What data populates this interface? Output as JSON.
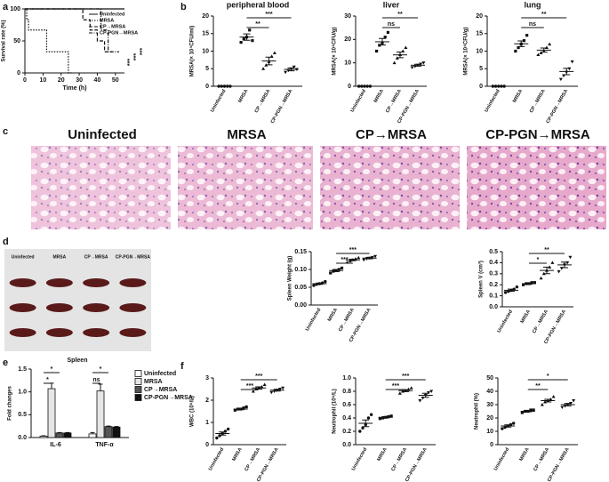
{
  "panel_labels": [
    "a",
    "b",
    "c",
    "d",
    "e",
    "f"
  ],
  "histology": {
    "titles": [
      "Uninfected",
      "MRSA",
      "CP→MRSA",
      "CP-PGN→MRSA"
    ]
  },
  "spleen_photo": {
    "column_labels": [
      "Uninfected",
      "MRSA",
      "CP→MRSA",
      "CP-PGN→MRSA"
    ],
    "caption": "Spleen"
  },
  "chart_data": [
    {
      "type": "line",
      "ylabel": "Survival rate (%)",
      "xlabel": "Time (h)",
      "xlim": [
        0,
        55
      ],
      "xticks": [
        0,
        10,
        20,
        30,
        40,
        50
      ],
      "ylim": [
        0,
        100
      ],
      "yticks": [
        0,
        50,
        100
      ],
      "series": [
        {
          "name": "Uninfected",
          "color": "#111111",
          "dash": "none",
          "x": [
            0,
            55
          ],
          "values": [
            100,
            100
          ]
        },
        {
          "name": "MRSA",
          "color": "#111111",
          "dash": "1.5,1.5",
          "x": [
            0,
            1,
            1,
            2,
            2,
            12,
            12,
            24,
            24,
            26
          ],
          "values": [
            100,
            100,
            83,
            83,
            67,
            67,
            33,
            33,
            0,
            0
          ]
        },
        {
          "name": "CP→MRSA",
          "color": "#111111",
          "dash": "4,2",
          "x": [
            0,
            32,
            32,
            36,
            36,
            40,
            40,
            44,
            44,
            48
          ],
          "values": [
            100,
            100,
            83,
            83,
            67,
            67,
            50,
            50,
            33,
            33
          ]
        },
        {
          "name": "CP-PGN→MRSA",
          "color": "#111111",
          "dash": "4,1.5,1,1.5",
          "x": [
            0,
            42,
            42,
            46,
            46,
            52
          ],
          "values": [
            100,
            100,
            67,
            67,
            33,
            33
          ]
        }
      ],
      "annotations": [
        "***",
        "***",
        "***"
      ]
    },
    {
      "type": "dotplot",
      "title": "peripheral blood",
      "ylabel": "MRSA(× 10⁴CFU/ml)",
      "categories": [
        "Uninfected",
        "MRSA",
        "CP→MRSA",
        "CP-PGN→MRSA"
      ],
      "ylim": [
        0,
        20
      ],
      "yticks": [
        0,
        5,
        10,
        15,
        20
      ],
      "values": [
        [
          0,
          0,
          0,
          0,
          0
        ],
        [
          12.5,
          13.5,
          14,
          16,
          13
        ],
        [
          5,
          6,
          7,
          8.5,
          9.5
        ],
        [
          4,
          4.5,
          5,
          5.5,
          4.8
        ]
      ],
      "means": [
        0,
        14,
        7.2,
        4.8
      ],
      "sems": [
        0,
        0.9,
        1.1,
        0.4
      ],
      "annotations": [
        {
          "text": "***",
          "between": [
            "MRSA",
            "CP-PGN→MRSA"
          ]
        },
        {
          "text": "**",
          "between": [
            "MRSA",
            "CP→MRSA"
          ]
        }
      ]
    },
    {
      "type": "dotplot",
      "title": "liver",
      "ylabel": "MRSA(× 10⁴CFU/g)",
      "categories": [
        "Uninfected",
        "MRSA",
        "CP→MRSA",
        "CP-PGN→MRSA"
      ],
      "ylim": [
        0,
        30
      ],
      "yticks": [
        0,
        10,
        20,
        30
      ],
      "values": [
        [
          0,
          0,
          0,
          0,
          0
        ],
        [
          15,
          17.5,
          18.5,
          21,
          23
        ],
        [
          10,
          12,
          13.5,
          15,
          16.5
        ],
        [
          8,
          8.5,
          9,
          9.5,
          10
        ]
      ],
      "means": [
        0,
        19,
        13.4,
        9
      ],
      "sems": [
        0,
        1.4,
        1.2,
        0.4
      ],
      "annotations": [
        {
          "text": "**",
          "between": [
            "MRSA",
            "CP-PGN→MRSA"
          ]
        },
        {
          "text": "ns",
          "between": [
            "MRSA",
            "CP→MRSA"
          ]
        }
      ]
    },
    {
      "type": "dotplot",
      "title": "lung",
      "ylabel": "MRSA(× 10⁴CFU/g)",
      "categories": [
        "Uninfected",
        "MRSA",
        "CP→MRSA",
        "CP-PGN→MRSA"
      ],
      "ylim": [
        0,
        20
      ],
      "yticks": [
        0,
        5,
        10,
        15,
        20
      ],
      "values": [
        [
          0,
          0,
          0,
          0,
          0
        ],
        [
          10,
          11,
          12,
          13,
          14.5
        ],
        [
          9,
          9.5,
          10,
          11,
          12
        ],
        [
          2,
          3,
          4,
          5,
          7
        ]
      ],
      "means": [
        0,
        12.1,
        10.3,
        4.2
      ],
      "sems": [
        0,
        0.8,
        0.6,
        0.9
      ],
      "annotations": [
        {
          "text": "**",
          "between": [
            "MRSA",
            "CP-PGN→MRSA"
          ]
        },
        {
          "text": "ns",
          "between": [
            "MRSA",
            "CP→MRSA"
          ]
        }
      ]
    },
    {
      "type": "dotplot",
      "ylabel": "Spleen Weight (g)",
      "categories": [
        "Uninfected",
        "MRSA",
        "CP→MRSA",
        "CP-PGN→MRSA"
      ],
      "ylim": [
        0,
        0.15
      ],
      "yticks": [
        {
          "value": 0,
          "label": "0.00"
        },
        0.05,
        {
          "value": 0.1,
          "label": "0.10"
        },
        0.15
      ],
      "values": [
        [
          0.055,
          0.058,
          0.06,
          0.062,
          0.066
        ],
        [
          0.09,
          0.095,
          0.097,
          0.1,
          0.104
        ],
        [
          0.12,
          0.124,
          0.127,
          0.13,
          0.133
        ],
        [
          0.127,
          0.13,
          0.132,
          0.134,
          0.137
        ]
      ],
      "means": [
        0.06,
        0.097,
        0.127,
        0.132
      ],
      "sems": [
        0.002,
        0.003,
        0.002,
        0.002
      ],
      "annotations": [
        {
          "text": "***",
          "between": [
            "MRSA",
            "CP-PGN→MRSA"
          ]
        },
        {
          "text": "***",
          "between": [
            "MRSA",
            "CP→MRSA"
          ]
        }
      ]
    },
    {
      "type": "dotplot",
      "ylabel": "Spleen V (cm³)",
      "categories": [
        "Uninfected",
        "MRSA",
        "CP→MRSA",
        "CP-PGN→MRSA"
      ],
      "ylim": [
        0,
        0.5
      ],
      "yticks": [
        {
          "value": 0,
          "label": "0.0"
        },
        0.1,
        0.2,
        0.3,
        0.4,
        0.5
      ],
      "values": [
        [
          0.13,
          0.14,
          0.15,
          0.16,
          0.18
        ],
        [
          0.2,
          0.21,
          0.21,
          0.22,
          0.22
        ],
        [
          0.26,
          0.3,
          0.33,
          0.36,
          0.4
        ],
        [
          0.32,
          0.35,
          0.38,
          0.4,
          0.45
        ]
      ],
      "means": [
        0.15,
        0.21,
        0.33,
        0.38
      ],
      "sems": [
        0.01,
        0.005,
        0.03,
        0.025
      ],
      "annotations": [
        {
          "text": "**",
          "between": [
            "MRSA",
            "CP-PGN→MRSA"
          ]
        },
        {
          "text": "*",
          "between": [
            "MRSA",
            "CP→MRSA"
          ]
        }
      ]
    },
    {
      "type": "bar",
      "ylabel": "Fold changes",
      "categories": [
        "IL-6",
        "TNF-α"
      ],
      "ylim": [
        0,
        1.5
      ],
      "yticks": [
        {
          "value": 0,
          "label": "0.0"
        },
        0.5,
        {
          "value": 1,
          "label": "1.0"
        },
        1.5
      ],
      "series": [
        {
          "name": "Uninfected",
          "color": "#ffffff",
          "values": [
            0.03,
            0.08
          ],
          "errors": [
            0.01,
            0.03
          ]
        },
        {
          "name": "MRSA",
          "color": "#e6e6e6",
          "values": [
            1.07,
            1.02
          ],
          "errors": [
            0.12,
            0.15
          ]
        },
        {
          "name": "CP→MRSA",
          "color": "#555555",
          "values": [
            0.1,
            0.24
          ],
          "errors": [
            0.01,
            0.01
          ]
        },
        {
          "name": "CP-PGN→MRSA",
          "color": "#111111",
          "values": [
            0.1,
            0.23
          ],
          "errors": [
            0.01,
            0.01
          ]
        }
      ],
      "annotations": [
        {
          "text": "*",
          "category": "IL-6",
          "between": [
            "Uninfected",
            "CP→MRSA"
          ]
        },
        {
          "text": "*",
          "category": "IL-6",
          "between": [
            "Uninfected",
            "MRSA"
          ]
        },
        {
          "text": "*",
          "category": "TNF-α",
          "between": [
            "Uninfected",
            "CP→MRSA"
          ]
        },
        {
          "text": "ns",
          "category": "TNF-α",
          "between": [
            "Uninfected",
            "MRSA"
          ]
        }
      ]
    },
    {
      "type": "dotplot",
      "ylabel": "WBC (10⁹/L)",
      "categories": [
        "Uninfected",
        "MRSA",
        "CP→MRSA",
        "CP-PGN→MRSA"
      ],
      "ylim": [
        0,
        3
      ],
      "yticks": [
        0,
        1,
        2,
        3
      ],
      "values": [
        [
          0.3,
          0.4,
          0.5,
          0.6,
          0.7
        ],
        [
          1.55,
          1.6,
          1.6,
          1.65,
          1.7
        ],
        [
          2.4,
          2.5,
          2.55,
          2.6,
          2.7
        ],
        [
          2.35,
          2.4,
          2.45,
          2.5,
          2.55
        ]
      ],
      "means": [
        0.5,
        1.6,
        2.55,
        2.45
      ],
      "sems": [
        0.07,
        0.03,
        0.05,
        0.04
      ],
      "annotations": [
        {
          "text": "***",
          "between": [
            "MRSA",
            "CP-PGN→MRSA"
          ]
        },
        {
          "text": "***",
          "between": [
            "MRSA",
            "CP→MRSA"
          ]
        }
      ]
    },
    {
      "type": "dotplot",
      "ylabel": "Neutrophil (10⁹/L)",
      "categories": [
        "Uninfected",
        "MRSA",
        "CP→MRSA",
        "CP-PGN→MRSA"
      ],
      "ylim": [
        0,
        1
      ],
      "yticks": [
        {
          "value": 0,
          "label": "0.0"
        },
        0.2,
        0.4,
        0.6,
        0.8,
        {
          "value": 1,
          "label": "1.0"
        }
      ],
      "values": [
        [
          0.2,
          0.25,
          0.3,
          0.4,
          0.45
        ],
        [
          0.39,
          0.4,
          0.41,
          0.42,
          0.43
        ],
        [
          0.77,
          0.8,
          0.81,
          0.83,
          0.85
        ],
        [
          0.66,
          0.7,
          0.74,
          0.78,
          0.8
        ]
      ],
      "means": [
        0.32,
        0.41,
        0.81,
        0.74
      ],
      "sems": [
        0.05,
        0.01,
        0.015,
        0.03
      ],
      "annotations": [
        {
          "text": "***",
          "between": [
            "MRSA",
            "CP-PGN→MRSA"
          ]
        },
        {
          "text": "***",
          "between": [
            "MRSA",
            "CP→MRSA"
          ]
        }
      ]
    },
    {
      "type": "dotplot",
      "ylabel": "Neutrophil (%)",
      "categories": [
        "Uninfected",
        "MRSA",
        "CP→MRSA",
        "CP-PGN→MRSA"
      ],
      "ylim": [
        0,
        50
      ],
      "yticks": [
        0,
        10,
        20,
        30,
        40,
        50
      ],
      "values": [
        [
          12,
          13,
          14,
          15,
          16
        ],
        [
          24,
          25,
          25,
          26,
          26
        ],
        [
          30,
          32,
          33,
          34,
          36
        ],
        [
          28,
          29,
          30,
          31,
          33
        ]
      ],
      "means": [
        14,
        25,
        33,
        30
      ],
      "sems": [
        0.8,
        0.4,
        1,
        0.9
      ],
      "annotations": [
        {
          "text": "*",
          "between": [
            "MRSA",
            "CP-PGN→MRSA"
          ]
        },
        {
          "text": "**",
          "between": [
            "MRSA",
            "CP→MRSA"
          ]
        }
      ]
    }
  ]
}
